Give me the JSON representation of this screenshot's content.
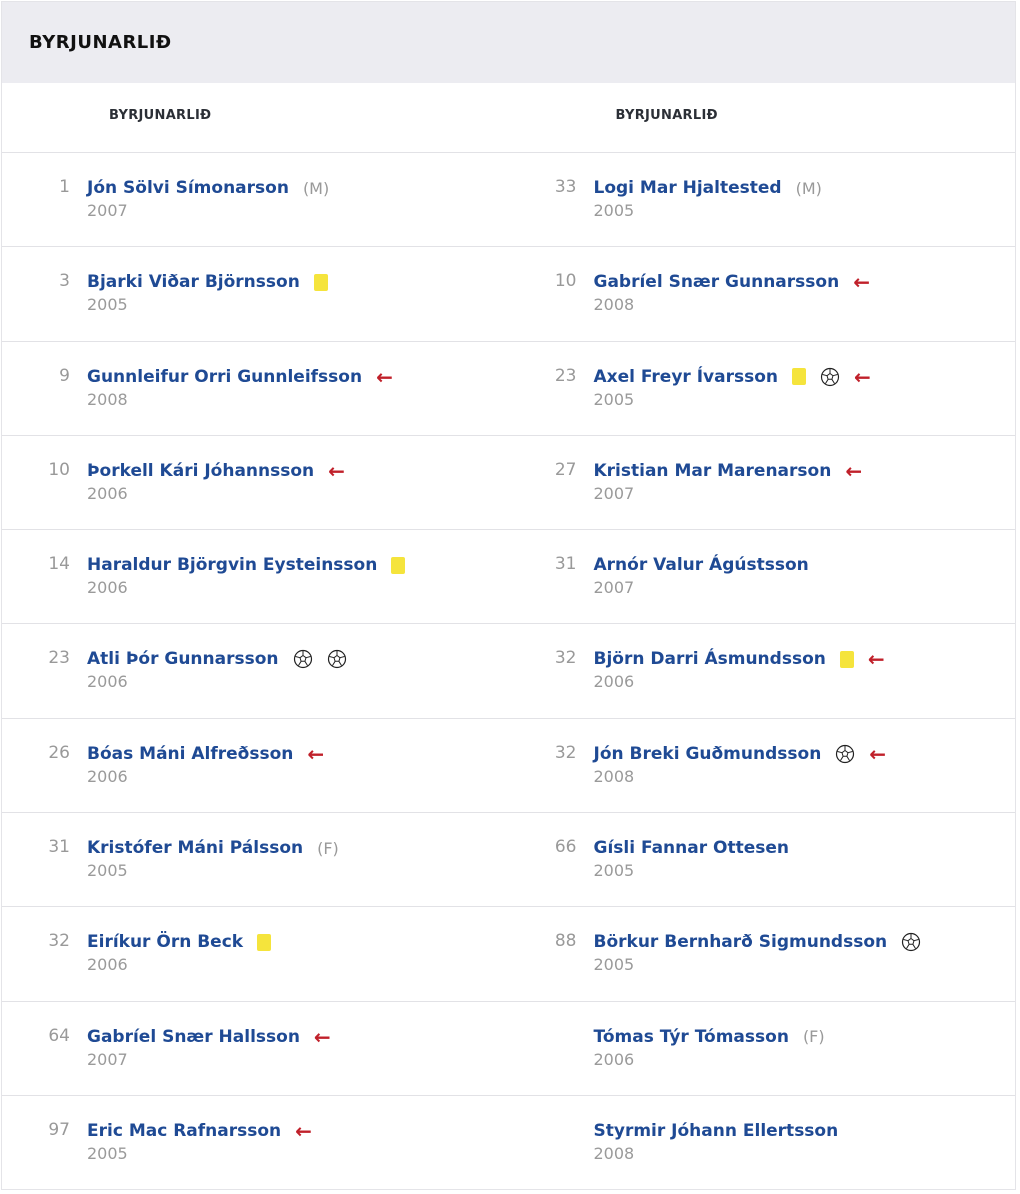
{
  "header": {
    "title": "BYRJUNARLIÐ"
  },
  "columns": [
    "BYRJUNARLIÐ",
    "BYRJUNARLIÐ"
  ],
  "teams": [
    [
      {
        "num": "1",
        "name": "Jón Sölvi Símonarson",
        "role": "(M)",
        "year": "2007",
        "events": []
      },
      {
        "num": "3",
        "name": "Bjarki Viðar Björnsson",
        "role": "",
        "year": "2005",
        "events": [
          "yellow-card"
        ]
      },
      {
        "num": "9",
        "name": "Gunnleifur Orri Gunnleifsson",
        "role": "",
        "year": "2008",
        "events": [
          "sub-off"
        ]
      },
      {
        "num": "10",
        "name": "Þorkell Kári Jóhannsson",
        "role": "",
        "year": "2006",
        "events": [
          "sub-off"
        ]
      },
      {
        "num": "14",
        "name": "Haraldur Björgvin Eysteinsson",
        "role": "",
        "year": "2006",
        "events": [
          "yellow-card"
        ]
      },
      {
        "num": "23",
        "name": "Atli Þór Gunnarsson",
        "role": "",
        "year": "2006",
        "events": [
          "goal",
          "goal"
        ]
      },
      {
        "num": "26",
        "name": "Bóas Máni Alfreðsson",
        "role": "",
        "year": "2006",
        "events": [
          "sub-off"
        ]
      },
      {
        "num": "31",
        "name": "Kristófer Máni Pálsson",
        "role": "(F)",
        "year": "2005",
        "events": []
      },
      {
        "num": "32",
        "name": "Eiríkur Örn Beck",
        "role": "",
        "year": "2006",
        "events": [
          "yellow-card"
        ]
      },
      {
        "num": "64",
        "name": "Gabríel Snær Hallsson",
        "role": "",
        "year": "2007",
        "events": [
          "sub-off"
        ]
      },
      {
        "num": "97",
        "name": "Eric Mac Rafnarsson",
        "role": "",
        "year": "2005",
        "events": [
          "sub-off"
        ]
      }
    ],
    [
      {
        "num": "33",
        "name": "Logi Mar Hjaltested",
        "role": "(M)",
        "year": "2005",
        "events": []
      },
      {
        "num": "10",
        "name": "Gabríel Snær Gunnarsson",
        "role": "",
        "year": "2008",
        "events": [
          "sub-off"
        ]
      },
      {
        "num": "23",
        "name": "Axel Freyr Ívarsson",
        "role": "",
        "year": "2005",
        "events": [
          "yellow-card",
          "goal",
          "sub-off"
        ]
      },
      {
        "num": "27",
        "name": "Kristian Mar Marenarson",
        "role": "",
        "year": "2007",
        "events": [
          "sub-off"
        ]
      },
      {
        "num": "31",
        "name": "Arnór Valur Ágústsson",
        "role": "",
        "year": "2007",
        "events": []
      },
      {
        "num": "32",
        "name": "Björn Darri Ásmundsson",
        "role": "",
        "year": "2006",
        "events": [
          "yellow-card",
          "sub-off"
        ]
      },
      {
        "num": "32",
        "name": "Jón Breki Guðmundsson",
        "role": "",
        "year": "2008",
        "events": [
          "goal",
          "sub-off"
        ]
      },
      {
        "num": "66",
        "name": "Gísli Fannar Ottesen",
        "role": "",
        "year": "2005",
        "events": []
      },
      {
        "num": "88",
        "name": "Börkur Bernharð Sigmundsson",
        "role": "",
        "year": "2005",
        "events": [
          "goal"
        ]
      },
      {
        "num": "",
        "name": "Tómas Týr Tómasson",
        "role": "(F)",
        "year": "2006",
        "events": []
      },
      {
        "num": "",
        "name": "Styrmir Jóhann Ellertsson",
        "role": "",
        "year": "2008",
        "events": []
      }
    ]
  ],
  "colors": {
    "name": "#1f4a94",
    "yellow_card": "#f5e43c",
    "arrow": "#c0202a",
    "header_bg": "#ececf1"
  }
}
